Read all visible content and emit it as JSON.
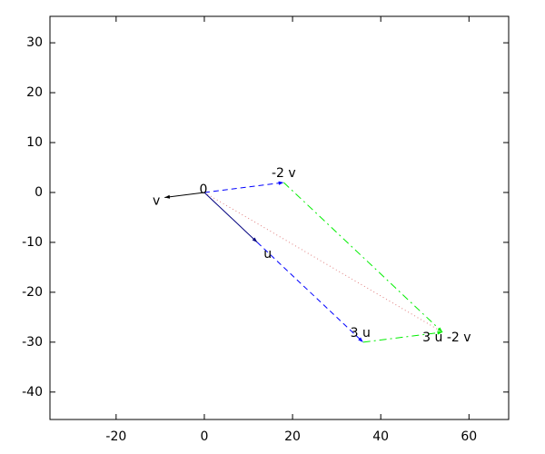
{
  "chart_data": {
    "type": "vector",
    "xlim": [
      -35,
      69
    ],
    "ylim": [
      -45.5,
      35.3
    ],
    "xticks": [
      -20,
      0,
      20,
      40,
      60
    ],
    "yticks": [
      -40,
      -30,
      -20,
      -10,
      0,
      10,
      20,
      30
    ],
    "points": [
      {
        "label": "0",
        "x": 0,
        "y": 0
      },
      {
        "label": "v",
        "x": -9,
        "y": -1
      },
      {
        "label": "u",
        "x": 12,
        "y": -10
      },
      {
        "label": "-2 v",
        "x": 18,
        "y": 2
      },
      {
        "label": "3 u",
        "x": 36,
        "y": -30
      },
      {
        "label": "3 u -2 v",
        "x": 54,
        "y": -28
      }
    ],
    "segments": [
      {
        "x": [
          0,
          18
        ],
        "y": [
          0,
          2
        ],
        "color": "#0000ff",
        "dash": "dashed",
        "arrow": true
      },
      {
        "x": [
          12,
          36
        ],
        "y": [
          -10,
          -30
        ],
        "color": "#0000ff",
        "dash": "dashed",
        "arrow": true
      },
      {
        "x": [
          18,
          54
        ],
        "y": [
          2,
          -28
        ],
        "color": "#00ee00",
        "dash": "dashdot",
        "arrow": true
      },
      {
        "x": [
          36,
          54
        ],
        "y": [
          -30,
          -28
        ],
        "color": "#00ee00",
        "dash": "dashdot",
        "arrow": true
      },
      {
        "x": [
          0,
          54
        ],
        "y": [
          0,
          -28
        ],
        "color": "#e08080",
        "dash": "dotted",
        "arrow": false
      },
      {
        "x": [
          0,
          -9
        ],
        "y": [
          0,
          -1
        ],
        "color": "#000000",
        "dash": "solid",
        "arrow": true
      },
      {
        "x": [
          0,
          12
        ],
        "y": [
          0,
          -10
        ],
        "color": "#00007f",
        "dash": "solid",
        "arrow": true
      }
    ]
  }
}
